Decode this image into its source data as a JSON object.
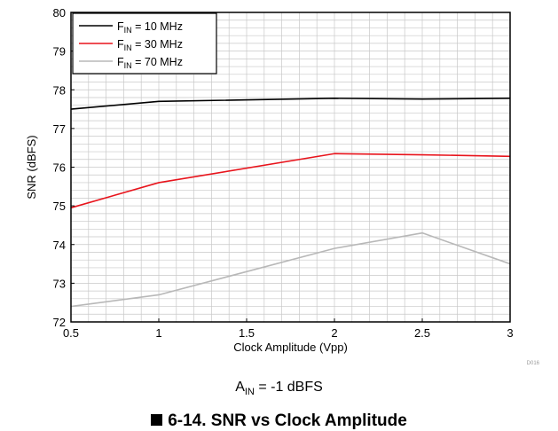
{
  "chart_data": {
    "type": "line",
    "xlabel": "Clock Amplitude (Vpp)",
    "ylabel": "SNR (dBFS)",
    "xlim": [
      0.5,
      3
    ],
    "ylim": [
      72,
      80
    ],
    "xticks": [
      0.5,
      1,
      1.5,
      2,
      2.5,
      3
    ],
    "xtick_labels": [
      "0.5",
      "1",
      "1.5",
      "2",
      "2.5",
      "3"
    ],
    "yticks": [
      72,
      73,
      74,
      75,
      76,
      77,
      78,
      79,
      80
    ],
    "ytick_labels": [
      "72",
      "73",
      "74",
      "75",
      "76",
      "77",
      "78",
      "79",
      "80"
    ],
    "grid": true,
    "legend_position": "top-left",
    "series": [
      {
        "name": "F_IN = 10 MHz",
        "label_main": "F",
        "label_sub": "IN",
        "label_rest": " = 10 MHz",
        "color": "#000000",
        "x": [
          0.5,
          1,
          2,
          2.5,
          3
        ],
        "y": [
          77.5,
          77.7,
          77.78,
          77.76,
          77.78
        ]
      },
      {
        "name": "F_IN = 30 MHz",
        "label_main": "F",
        "label_sub": "IN",
        "label_rest": " = 30 MHz",
        "color": "#e8141c",
        "x": [
          0.5,
          1,
          2,
          2.5,
          3
        ],
        "y": [
          74.95,
          75.6,
          76.35,
          76.32,
          76.28
        ]
      },
      {
        "name": "F_IN = 70 MHz",
        "label_main": "F",
        "label_sub": "IN",
        "label_rest": " = 70 MHz",
        "color": "#b8b8b8",
        "x": [
          0.5,
          1,
          2,
          2.5,
          3
        ],
        "y": [
          72.4,
          72.7,
          73.9,
          74.3,
          73.5
        ]
      }
    ],
    "doc_id": "D016"
  },
  "caption": {
    "main": "A",
    "sub": "IN",
    "rest": " = -1 dBFS"
  },
  "figure_title": "6-14. SNR vs Clock Amplitude"
}
